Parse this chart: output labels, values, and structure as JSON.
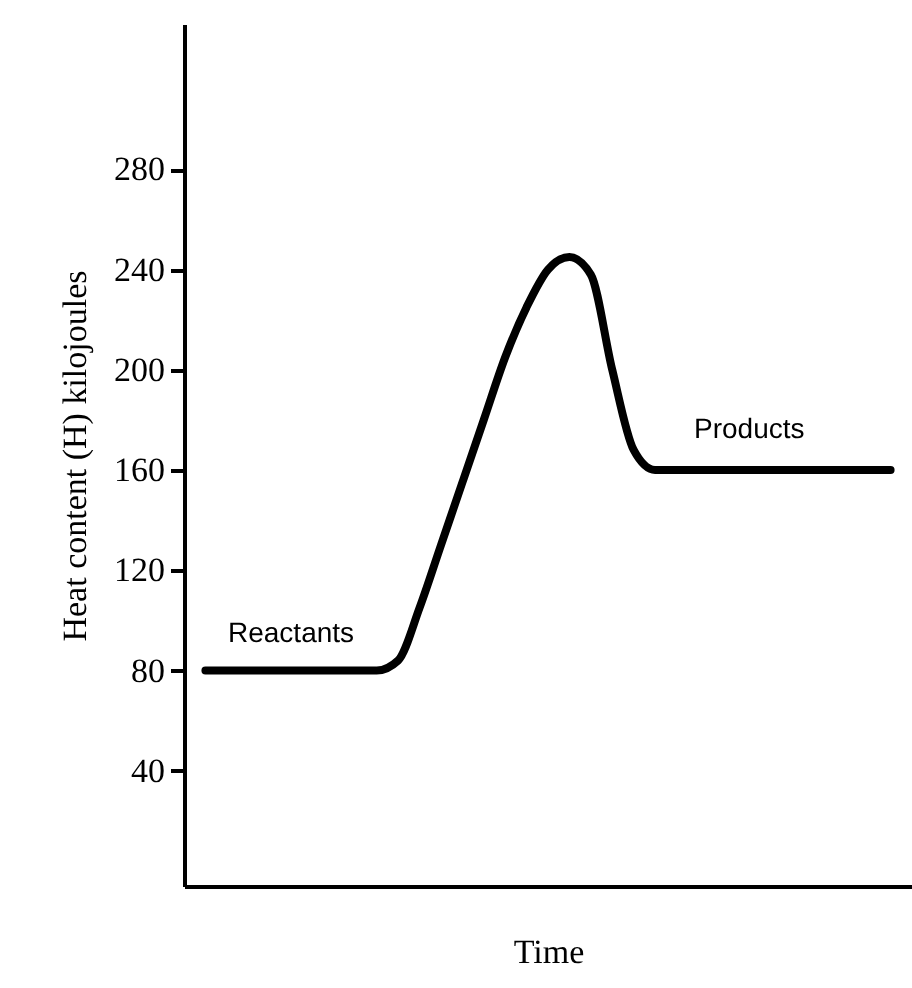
{
  "chart_data": {
    "type": "line",
    "xlabel": "Time",
    "ylabel": "Heat content (H) kilojoules",
    "ylim": [
      -6,
      338
    ],
    "yticks": [
      40,
      80,
      120,
      160,
      200,
      240,
      280
    ],
    "tick_labels": "y",
    "grid": false,
    "categories": [
      null,
      null,
      null,
      null,
      null,
      null,
      null,
      null,
      null,
      null,
      null,
      null,
      null,
      null,
      null,
      null,
      null,
      null,
      null,
      null,
      null,
      null,
      null,
      null,
      null,
      null,
      null,
      null,
      null,
      null,
      null,
      null,
      null
    ],
    "series": [
      {
        "color": "#000000",
        "values": [
          80,
          80,
          80,
          80,
          80,
          80,
          80,
          80,
          80,
          84,
          105,
          130,
          155,
          180,
          205,
          225,
          240,
          245,
          238,
          200,
          168,
          160,
          160,
          160,
          160,
          160,
          160,
          160,
          160,
          160,
          160,
          160,
          160
        ]
      }
    ],
    "annotations": [
      "Reactants",
      "Products"
    ]
  }
}
